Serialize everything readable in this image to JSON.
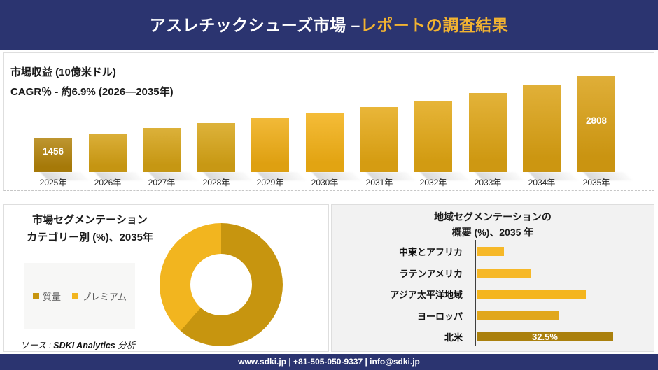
{
  "header": {
    "title_main": "アスレチックシューズ市場 –",
    "title_accent": "レポートの調査結果",
    "bg_color": "#2B3470",
    "accent_color": "#F2B331"
  },
  "chart_data": [
    {
      "id": "revenue",
      "type": "bar",
      "title": "市場収益 (10億米ドル)",
      "subtitle": "CAGR％ - 約6.9% (2026―2035年)",
      "categories": [
        "2025年",
        "2026年",
        "2027年",
        "2028年",
        "2029年",
        "2030年",
        "2031年",
        "2032年",
        "2033年",
        "2034年",
        "2035年"
      ],
      "values": [
        1456,
        1550,
        1660,
        1770,
        1880,
        2000,
        2130,
        2270,
        2430,
        2610,
        2808
      ],
      "data_labels": {
        "2025年": "1456",
        "2035年": "2808"
      },
      "ylim": [
        700,
        2850
      ],
      "grid": false,
      "bar_colors": [
        "#B28209",
        "#D4A013",
        "#D5A214",
        "#D7A415",
        "#EFAC12",
        "#F3B013",
        "#E5A813",
        "#E2A713",
        "#DEA413",
        "#DBA112",
        "#D99F12"
      ]
    },
    {
      "id": "category-share",
      "type": "pie",
      "donut": true,
      "title": "市場セグメンテーション",
      "subtitle": "カテゴリー別 (%)、2035年",
      "slices": [
        {
          "label": "質量",
          "value": 61.5,
          "color": "#C7950F"
        },
        {
          "label": "プレミアム",
          "value": 38.5,
          "color": "#F2B51F"
        }
      ],
      "legend_position": "left"
    },
    {
      "id": "regional-share",
      "type": "bar",
      "orientation": "horizontal",
      "title_line1": "地域セグメンテーションの",
      "title_line2": "概要 (%)、2035 年",
      "categories": [
        "中東とアフリカ",
        "ラテンアメリカ",
        "アジア太平洋地域",
        "ヨーロッパ",
        "北米"
      ],
      "values": [
        6.5,
        13,
        26,
        19.5,
        32.5
      ],
      "data_labels": {
        "北米": "32.5%"
      },
      "xlim": [
        0,
        35
      ],
      "grid": false,
      "bar_colors": [
        "#F6B828",
        "#F6B828",
        "#F4B51E",
        "#E1A71C",
        "#AA800D"
      ]
    }
  ],
  "source_note": {
    "prefix": "ソース : ",
    "brand": "SDKI Analytics",
    "suffix": " 分析"
  },
  "footer": {
    "text": "www.sdki.jp | +81-505-050-9337 | info@sdki.jp"
  }
}
